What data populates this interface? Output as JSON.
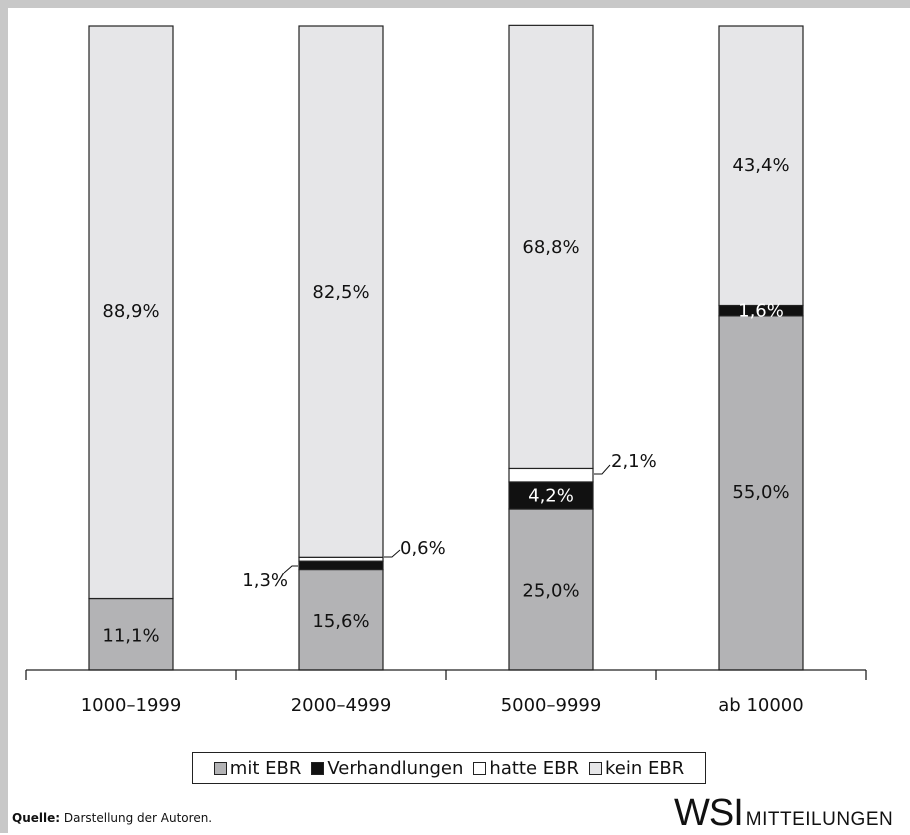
{
  "chart_data": {
    "type": "bar",
    "stacked": true,
    "categories": [
      "1000–1999",
      "2000–4999",
      "5000–9999",
      "ab 10000"
    ],
    "series": [
      {
        "name": "mit EBR",
        "values": [
          11.1,
          15.6,
          25.0,
          55.0
        ],
        "labels": [
          "11,1%",
          "15,6%",
          "25,0%",
          "55,0%"
        ]
      },
      {
        "name": "Verhandlungen",
        "values": [
          0,
          1.3,
          4.2,
          1.6
        ],
        "labels": [
          "",
          "1,3%",
          "4,2%",
          "1,6%"
        ]
      },
      {
        "name": "hatte EBR",
        "values": [
          0,
          0.6,
          2.1,
          0
        ],
        "labels": [
          "",
          "0,6%",
          "2,1%",
          ""
        ]
      },
      {
        "name": "kein EBR",
        "values": [
          88.9,
          82.5,
          68.8,
          43.4
        ],
        "labels": [
          "88,9%",
          "82,5%",
          "68,8%",
          "43,4%"
        ]
      }
    ],
    "colors": {
      "mit EBR": "#b3b3b5",
      "Verhandlungen": "#111111",
      "hatte EBR": "#ffffff",
      "kein EBR": "#e6e6e8"
    },
    "ylim": [
      0,
      100
    ],
    "legend_position": "bottom"
  },
  "legend": {
    "items": [
      "mit EBR",
      "Verhandlungen",
      "hatte EBR",
      "kein EBR"
    ]
  },
  "footer": {
    "source_label": "Quelle:",
    "source_text": " Darstellung der Autoren.",
    "brand_big": "WSI",
    "brand_small": "MITTEILUNGEN"
  }
}
